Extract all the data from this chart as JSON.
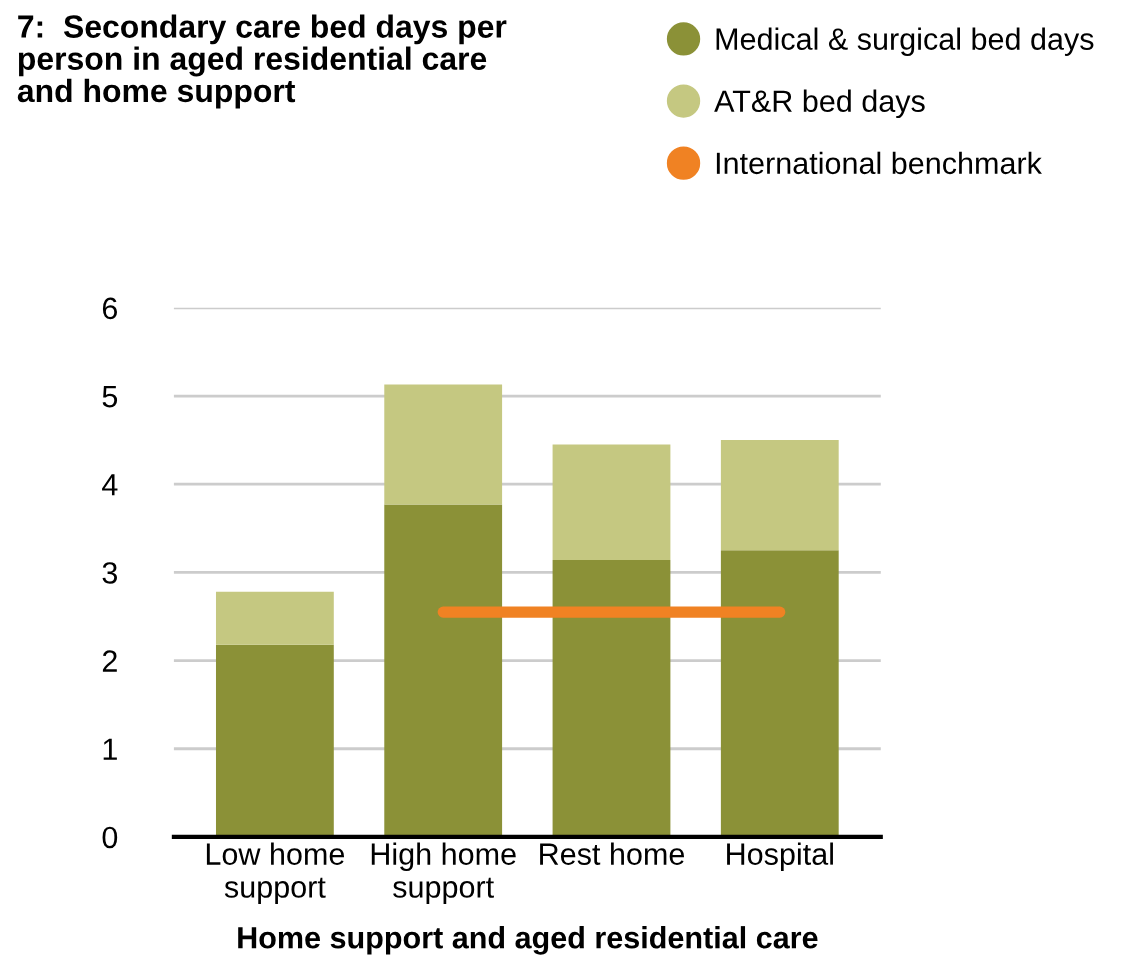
{
  "chart_data": {
    "type": "bar",
    "title": "7:  Secondary care bed days per\nperson in aged residential care\nand home support",
    "xlabel": "Home support and aged residential care",
    "categories": [
      "Low home\nsupport",
      "High home\nsupport",
      "Rest home",
      "Hospital"
    ],
    "stacked": true,
    "series": [
      {
        "name": "Medical & surgical bed days",
        "color": "#8b9137",
        "values": [
          2.18,
          3.77,
          3.14,
          3.25
        ]
      },
      {
        "name": "AT&R bed days",
        "color": "#c5c881",
        "values": [
          0.6,
          1.36,
          1.31,
          1.25
        ]
      },
      {
        "name": "International benchmark",
        "type": "line",
        "color": "#f08223",
        "values": [
          null,
          2.55,
          2.55,
          2.55
        ]
      }
    ],
    "ylim": [
      0,
      6
    ],
    "yticks": [
      0,
      1,
      2,
      3,
      4,
      5,
      6
    ],
    "grid": "y",
    "legend": "top right"
  }
}
